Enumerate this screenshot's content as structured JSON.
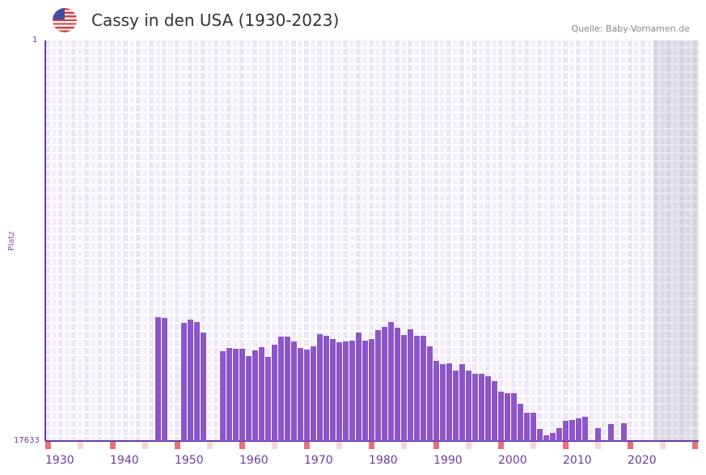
{
  "header": {
    "title": "Cassy in den USA (1930-2023)",
    "source": "Quelle: Baby-Vornamen.de",
    "flag_icon": "us-flag-icon"
  },
  "colors": {
    "bar": "#8c55c8",
    "axis": "#6a3ea1",
    "decade_marker": "#e8707a",
    "half_decade_marker": "#f5d6de"
  },
  "chart_data": {
    "type": "bar",
    "title": "Cassy in den USA (1930-2023)",
    "xlabel": "",
    "ylabel": "Platz",
    "y_scale": "log",
    "y_inverted": true,
    "ylim": [
      1,
      17633
    ],
    "y_ticks": [
      "1",
      "17633"
    ],
    "xlim": [
      1930,
      2030
    ],
    "x_ticks": [
      "1930",
      "1940",
      "1950",
      "1960",
      "1970",
      "1980",
      "1990",
      "2000",
      "2010",
      "2020"
    ],
    "future_shaded_from": 2024,
    "years": [
      1947,
      1948,
      1951,
      1952,
      1953,
      1954,
      1957,
      1958,
      1959,
      1960,
      1961,
      1962,
      1963,
      1964,
      1965,
      1966,
      1967,
      1968,
      1969,
      1970,
      1971,
      1972,
      1973,
      1974,
      1975,
      1976,
      1977,
      1978,
      1979,
      1980,
      1981,
      1982,
      1983,
      1984,
      1985,
      1986,
      1987,
      1988,
      1989,
      1990,
      1991,
      1992,
      1993,
      1994,
      1995,
      1996,
      1997,
      1998,
      1999,
      2000,
      2001,
      2002,
      2003,
      2004,
      2005,
      2006,
      2007,
      2008,
      2009,
      2010,
      2011,
      2012,
      2013,
      2015,
      2017,
      2019
    ],
    "ranks": [
      859,
      876,
      986,
      911,
      967,
      1250,
      1968,
      1819,
      1855,
      1855,
      2216,
      1930,
      1783,
      2260,
      1681,
      1379,
      1379,
      1553,
      1819,
      1892,
      1749,
      1300,
      1352,
      1464,
      1584,
      1553,
      1523,
      1250,
      1523,
      1464,
      1178,
      1089,
      967,
      1110,
      1326,
      1155,
      1352,
      1352,
      1749,
      2495,
      2700,
      2648,
      3163,
      2700,
      3163,
      3424,
      3424,
      3633,
      4090,
      5281,
      5497,
      5497,
      7111,
      8833,
      8833,
      13120,
      15357,
      14478,
      12862,
      10770,
      10556,
      10145,
      9752,
      12862,
      11655,
      11425
    ]
  }
}
